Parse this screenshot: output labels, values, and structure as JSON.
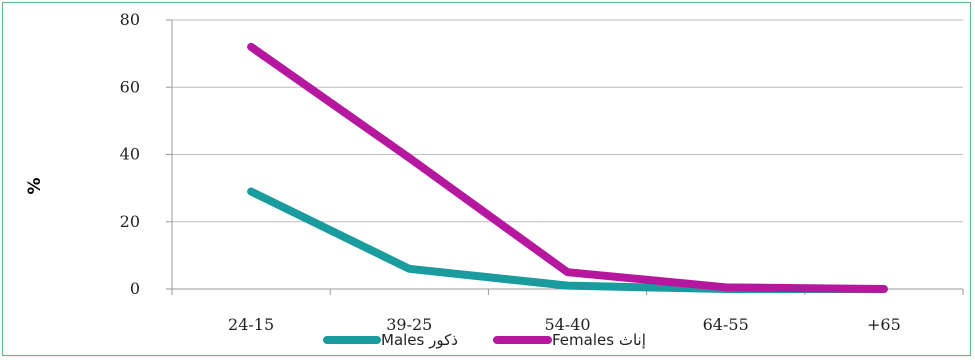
{
  "chart_data": {
    "type": "line",
    "title": "",
    "xlabel": "",
    "ylabel": "%",
    "categories": [
      "24-15",
      "39-25",
      "54-40",
      "64-55",
      "65+"
    ],
    "category_labels": [
      "24-15",
      "39-25",
      "54-40",
      "64-55",
      "+65"
    ],
    "ylim": [
      0,
      80
    ],
    "yticks": [
      "0",
      "20",
      "40",
      "60",
      "80"
    ],
    "grid": true,
    "legend_position": "bottom",
    "series": [
      {
        "name": "Males ذكور",
        "color": "#1a9c9e",
        "values": [
          29,
          6,
          1,
          0,
          0
        ]
      },
      {
        "name": "Females إناث",
        "color": "#b5179e",
        "values": [
          72,
          39,
          5,
          0.5,
          0
        ]
      }
    ]
  }
}
